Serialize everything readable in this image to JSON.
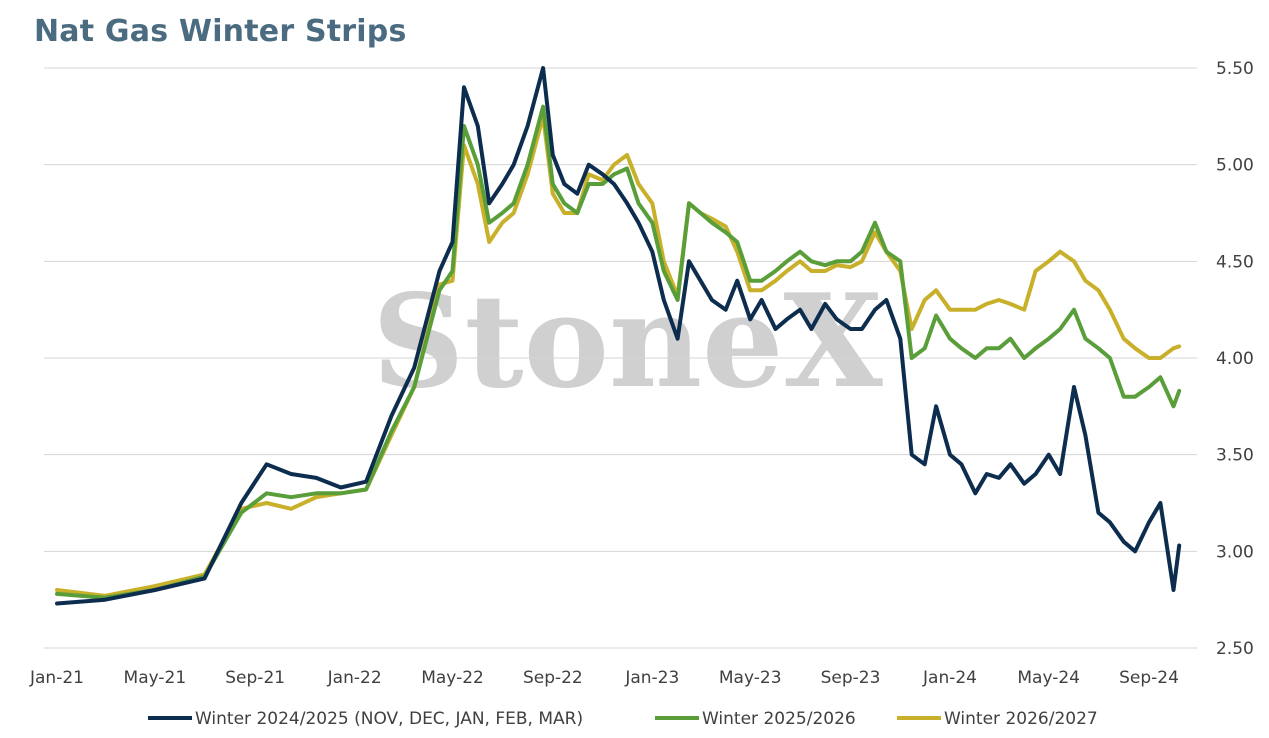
{
  "chart_data": {
    "type": "line",
    "title": "Nat Gas Winter Strips",
    "xlabel": "",
    "ylabel": "",
    "ylim": [
      2.5,
      5.5
    ],
    "y_ticks": [
      "5.50",
      "5.00",
      "4.50",
      "4.00",
      "3.50",
      "3.00",
      "2.50"
    ],
    "x_ticks": [
      "Jan-21",
      "May-21",
      "Sep-21",
      "Jan-22",
      "May-22",
      "Sep-22",
      "Jan-23",
      "May-23",
      "Sep-23",
      "Jan-24",
      "May-24",
      "Sep-24"
    ],
    "grid": "horizontal",
    "legend_position": "bottom",
    "watermark": "StoneX",
    "x": [
      "2021-01-01",
      "2021-03-01",
      "2021-05-01",
      "2021-07-01",
      "2021-08-15",
      "2021-09-15",
      "2021-10-15",
      "2021-11-15",
      "2021-12-15",
      "2022-01-15",
      "2022-02-15",
      "2022-03-15",
      "2022-04-15",
      "2022-05-01",
      "2022-05-15",
      "2022-06-01",
      "2022-06-15",
      "2022-07-01",
      "2022-07-15",
      "2022-08-01",
      "2022-08-20",
      "2022-09-01",
      "2022-09-15",
      "2022-10-01",
      "2022-10-15",
      "2022-11-01",
      "2022-11-15",
      "2022-12-01",
      "2022-12-15",
      "2023-01-01",
      "2023-01-15",
      "2023-02-01",
      "2023-02-15",
      "2023-03-01",
      "2023-03-15",
      "2023-04-01",
      "2023-04-15",
      "2023-05-01",
      "2023-05-15",
      "2023-06-01",
      "2023-06-15",
      "2023-07-01",
      "2023-07-15",
      "2023-08-01",
      "2023-08-15",
      "2023-09-01",
      "2023-09-15",
      "2023-10-01",
      "2023-10-15",
      "2023-11-01",
      "2023-11-15",
      "2023-12-01",
      "2023-12-15",
      "2024-01-01",
      "2024-01-15",
      "2024-02-01",
      "2024-02-15",
      "2024-03-01",
      "2024-03-15",
      "2024-04-01",
      "2024-04-15",
      "2024-05-01",
      "2024-05-15",
      "2024-06-01",
      "2024-06-15",
      "2024-07-01",
      "2024-07-15",
      "2024-08-01",
      "2024-08-15",
      "2024-09-01",
      "2024-09-15",
      "2024-10-01",
      "2024-10-08"
    ],
    "series": [
      {
        "name": "Winter 2024/2025 (NOV, DEC, JAN, FEB, MAR)",
        "color": "#0d2d4e",
        "values": [
          2.73,
          2.75,
          2.8,
          2.86,
          3.25,
          3.45,
          3.4,
          3.38,
          3.33,
          3.36,
          3.7,
          3.95,
          4.45,
          4.6,
          5.4,
          5.2,
          4.8,
          4.9,
          5.0,
          5.2,
          5.5,
          5.05,
          4.9,
          4.85,
          5.0,
          4.95,
          4.9,
          4.8,
          4.7,
          4.55,
          4.3,
          4.1,
          4.5,
          4.4,
          4.3,
          4.25,
          4.4,
          4.2,
          4.3,
          4.15,
          4.2,
          4.25,
          4.15,
          4.28,
          4.2,
          4.15,
          4.15,
          4.25,
          4.3,
          4.1,
          3.5,
          3.45,
          3.75,
          3.5,
          3.45,
          3.3,
          3.4,
          3.38,
          3.45,
          3.35,
          3.4,
          3.5,
          3.4,
          3.85,
          3.6,
          3.2,
          3.15,
          3.05,
          3.0,
          3.15,
          3.25,
          2.8,
          3.03
        ]
      },
      {
        "name": "Winter 2025/2026",
        "color": "#5a9e3a",
        "values": [
          2.78,
          2.76,
          2.8,
          2.87,
          3.2,
          3.3,
          3.28,
          3.3,
          3.3,
          3.32,
          3.62,
          3.85,
          4.35,
          4.45,
          5.2,
          5.0,
          4.7,
          4.75,
          4.8,
          5.0,
          5.3,
          4.9,
          4.8,
          4.75,
          4.9,
          4.9,
          4.95,
          4.98,
          4.8,
          4.7,
          4.45,
          4.3,
          4.8,
          4.75,
          4.7,
          4.65,
          4.6,
          4.4,
          4.4,
          4.45,
          4.5,
          4.55,
          4.5,
          4.48,
          4.5,
          4.5,
          4.55,
          4.7,
          4.55,
          4.5,
          4.0,
          4.05,
          4.22,
          4.1,
          4.05,
          4.0,
          4.05,
          4.05,
          4.1,
          4.0,
          4.05,
          4.1,
          4.15,
          4.25,
          4.1,
          4.05,
          4.0,
          3.8,
          3.8,
          3.85,
          3.9,
          3.75,
          3.83
        ]
      },
      {
        "name": "Winter 2026/2027",
        "color": "#c9b02b",
        "values": [
          2.8,
          2.77,
          2.82,
          2.88,
          3.22,
          3.25,
          3.22,
          3.28,
          3.3,
          3.32,
          3.6,
          3.85,
          4.38,
          4.4,
          5.1,
          4.9,
          4.6,
          4.7,
          4.75,
          4.95,
          5.25,
          4.85,
          4.75,
          4.75,
          4.95,
          4.92,
          5.0,
          5.05,
          4.9,
          4.8,
          4.5,
          4.32,
          4.8,
          4.75,
          4.72,
          4.68,
          4.55,
          4.35,
          4.35,
          4.4,
          4.45,
          4.5,
          4.45,
          4.45,
          4.48,
          4.47,
          4.5,
          4.65,
          4.55,
          4.45,
          4.15,
          4.3,
          4.35,
          4.25,
          4.25,
          4.25,
          4.28,
          4.3,
          4.28,
          4.25,
          4.45,
          4.5,
          4.55,
          4.5,
          4.4,
          4.35,
          4.25,
          4.1,
          4.05,
          4.0,
          4.0,
          4.05,
          4.06
        ]
      }
    ]
  }
}
